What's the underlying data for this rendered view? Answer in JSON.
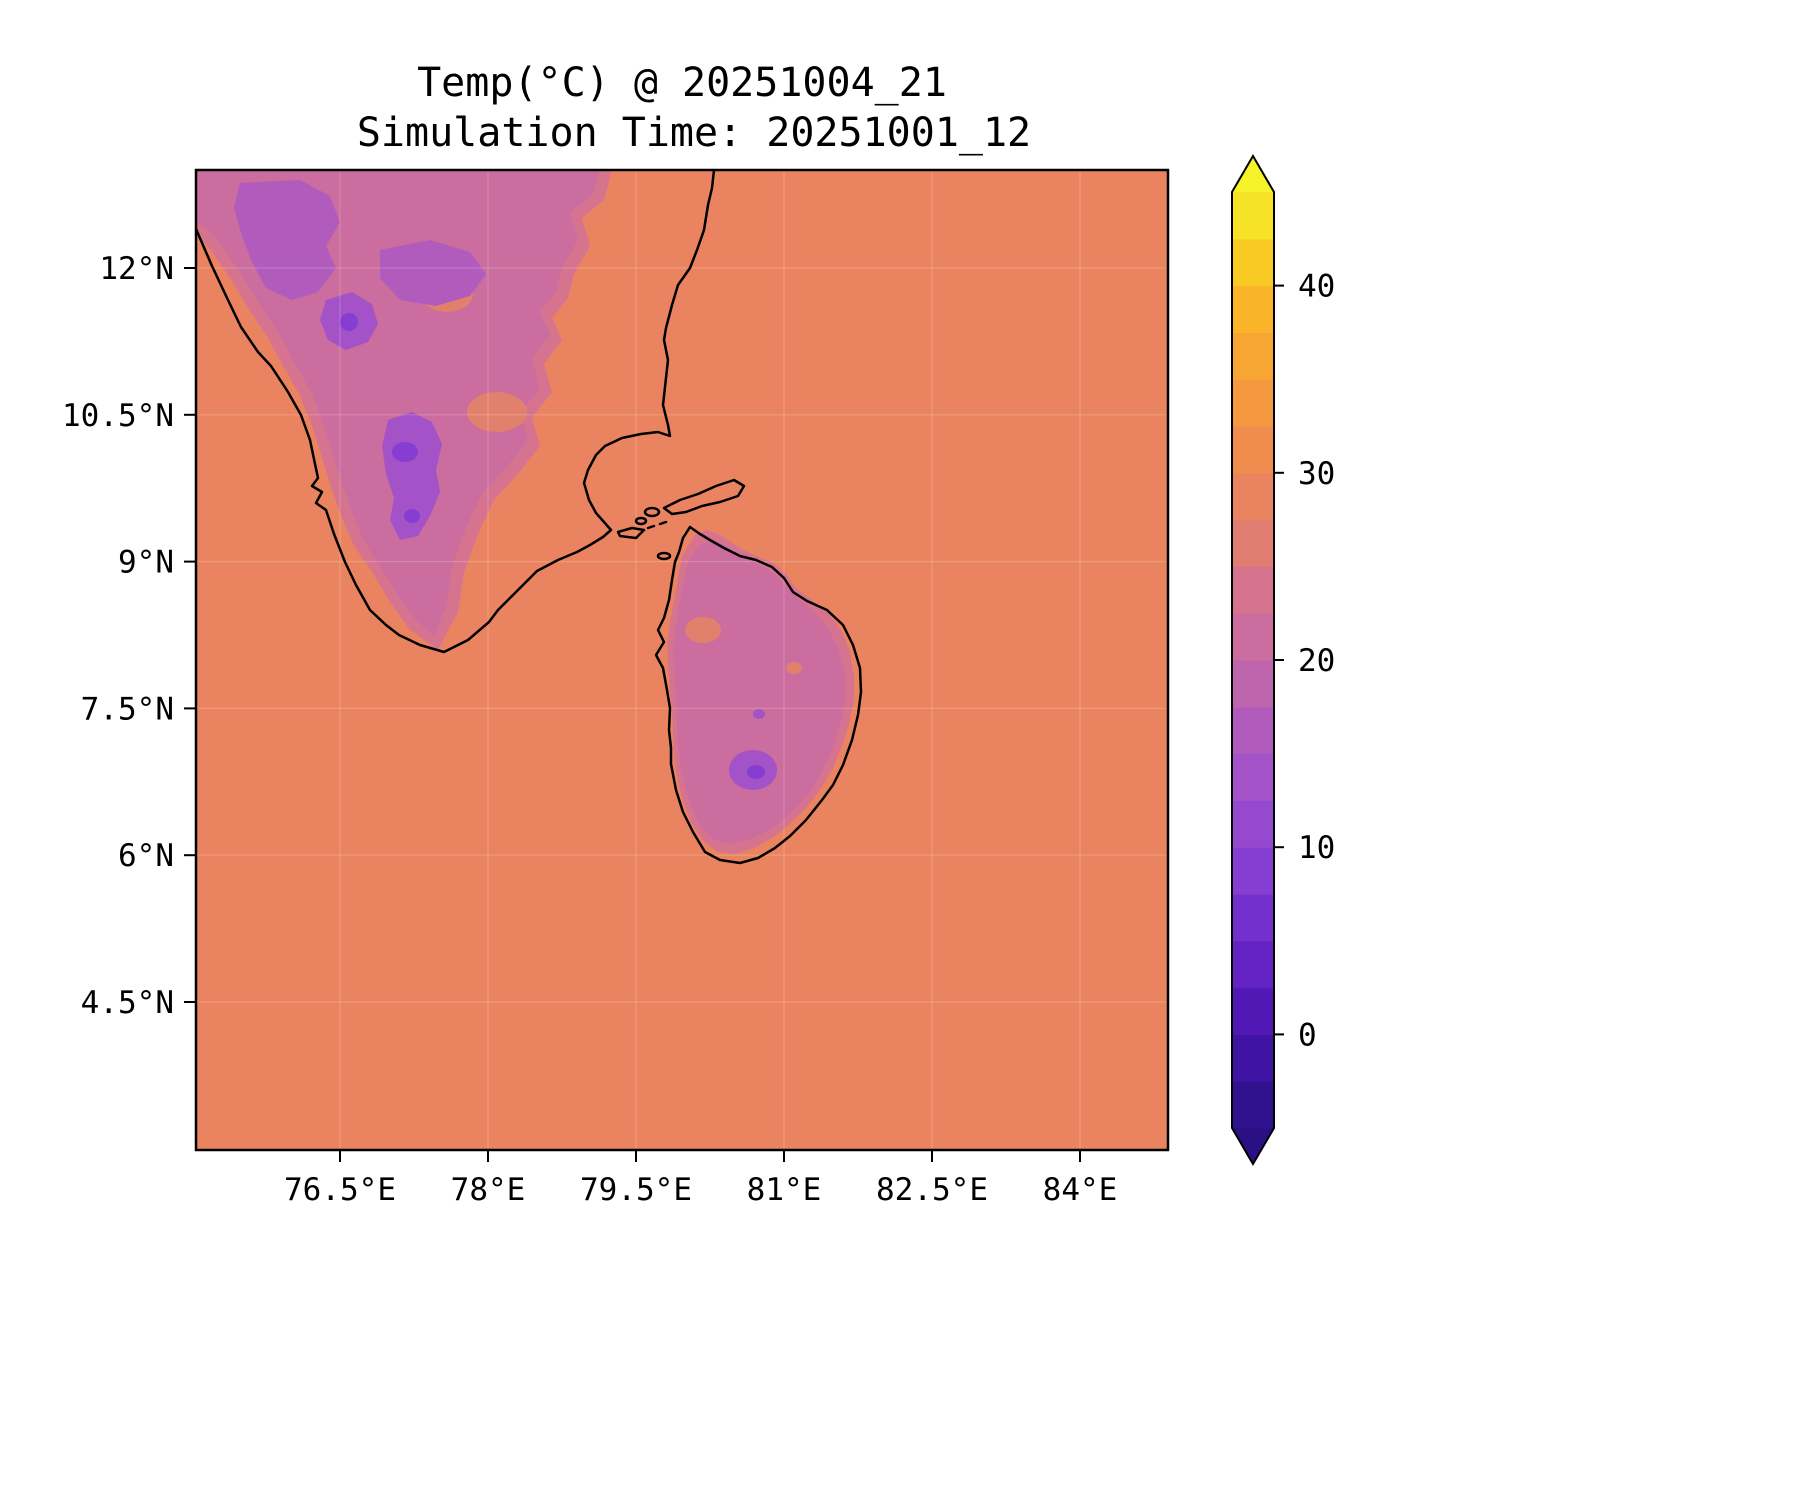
{
  "title": {
    "line1": "Temp(°C) @ 20251004_21",
    "line2": "Simulation Time: 20251001_12"
  },
  "chart_data": {
    "type": "heatmap",
    "title": "Temp(°C) @ 20251004_21",
    "subtitle": "Simulation Time: 20251001_12",
    "variable": "Temperature (°C)",
    "valid_time": "20251004_21",
    "simulation_time": "20251001_12",
    "region": "Southern India and Sri Lanka",
    "x_axis": {
      "label": "",
      "ticks": [
        {
          "value": 76.5,
          "label": "76.5°E"
        },
        {
          "value": 78.0,
          "label": "78°E"
        },
        {
          "value": 79.5,
          "label": "79.5°E"
        },
        {
          "value": 81.0,
          "label": "81°E"
        },
        {
          "value": 82.5,
          "label": "82.5°E"
        },
        {
          "value": 84.0,
          "label": "84°E"
        }
      ],
      "range_deg_east": [
        75.0,
        84.9
      ]
    },
    "y_axis": {
      "label": "",
      "ticks": [
        {
          "value": 12.0,
          "label": "12°N"
        },
        {
          "value": 10.5,
          "label": "10.5°N"
        },
        {
          "value": 9.0,
          "label": "9°N"
        },
        {
          "value": 7.5,
          "label": "7.5°N"
        },
        {
          "value": 6.0,
          "label": "6°N"
        },
        {
          "value": 4.5,
          "label": "4.5°N"
        }
      ],
      "range_deg_north": [
        3.0,
        13.0
      ]
    },
    "grid": true,
    "legend_position": "right-colorbar",
    "colorbar": {
      "min": -5,
      "max": 45,
      "step": 2.5,
      "ticks": [
        0,
        10,
        20,
        30,
        40
      ],
      "extend": "both",
      "colors": [
        "#30128f",
        "#3f14a4",
        "#5218b6",
        "#6322c4",
        "#7430cc",
        "#853ed1",
        "#9549cf",
        "#a353c7",
        "#b15cbc",
        "#bf65ad",
        "#cb6d9e",
        "#d67490",
        "#e17c72",
        "#ea8460",
        "#f08d4e",
        "#f4993f",
        "#f7a634",
        "#fab42a",
        "#f9c924",
        "#f6e226"
      ],
      "extend_low": "#2a0f85",
      "extend_high": "#f7f32a"
    },
    "field_values_c": {
      "sea_surface": 28,
      "india_interior_land": 21,
      "india_highlands": 17,
      "india_cool_patches": 13,
      "india_cold_cores": 9,
      "sri_lanka_interior": 21,
      "sri_lanka_cool_patch": 13,
      "sri_lanka_cold_core": 9,
      "warm_pockets_on_land": 26
    }
  },
  "colors": {
    "sea": "#ea8460",
    "land_cool": "#cb6d9e",
    "land_fringe": "#d67490",
    "warm_pocket": "#e2806e",
    "cool_patch_magenta": "#b15cbc",
    "cool_patch_purple": "#a353c7",
    "cold_core_violet": "#853ed1",
    "coastline": "#000000",
    "frame": "#000000"
  }
}
